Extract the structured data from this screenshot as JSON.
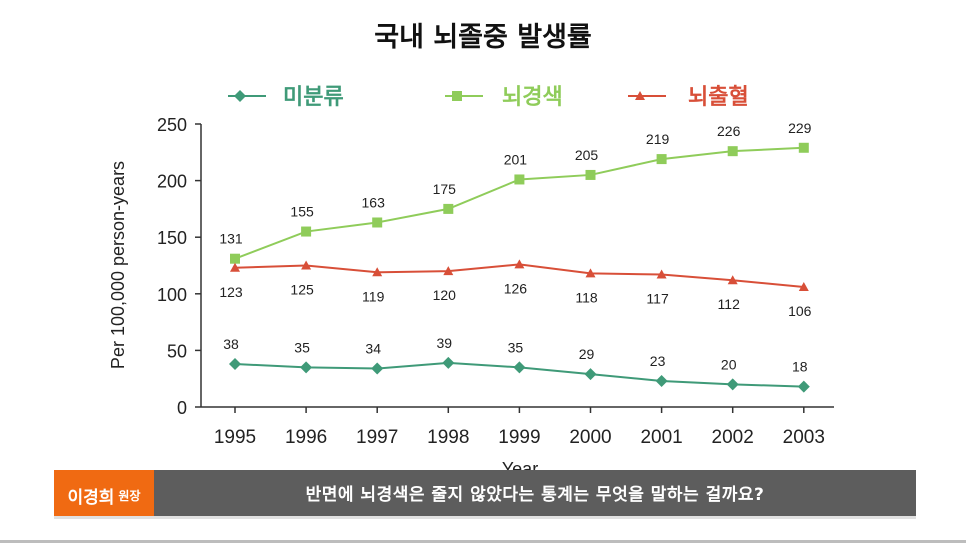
{
  "colors": {
    "unclassified": "#3f9a78",
    "infarction": "#8fcc5a",
    "hemorrhage": "#d84f38",
    "axis": "#333333",
    "presenter_bg": "#f06a12",
    "caption_bg": "#5d5d5d"
  },
  "chart_data": {
    "type": "line",
    "title": "국내 뇌졸중 발생률",
    "xlabel": "Year",
    "ylabel": "Per 100,000 person-years",
    "ylim": [
      0,
      250
    ],
    "yticks": [
      "0",
      "50",
      "100",
      "150",
      "200",
      "250"
    ],
    "grid": false,
    "legend_placement": "top",
    "x": [
      "1995",
      "1996",
      "1997",
      "1998",
      "1999",
      "2000",
      "2001",
      "2002",
      "2003"
    ],
    "series": [
      {
        "name": "미분류",
        "marker": "diamond",
        "color": "#3f9a78",
        "values": [
          38,
          35,
          34,
          39,
          35,
          29,
          23,
          20,
          18
        ],
        "labels": [
          "38",
          "35",
          "34",
          "39",
          "35",
          "29",
          "23",
          "20",
          "18"
        ],
        "label_position": "above"
      },
      {
        "name": "뇌경색",
        "marker": "square",
        "color": "#8fcc5a",
        "values": [
          131,
          155,
          163,
          175,
          201,
          205,
          219,
          226,
          229
        ],
        "labels": [
          "131",
          "155",
          "163",
          "175",
          "201",
          "205",
          "219",
          "226",
          "229"
        ],
        "label_position": "above"
      },
      {
        "name": "뇌출혈",
        "marker": "triangle",
        "color": "#d84f38",
        "values": [
          123,
          125,
          119,
          120,
          126,
          118,
          117,
          112,
          106
        ],
        "labels": [
          "123",
          "125",
          "119",
          "120",
          "126",
          "118",
          "117",
          "112",
          "106"
        ],
        "label_position": "below"
      }
    ]
  },
  "lower_third": {
    "presenter_name": "이경희",
    "presenter_title": "원장",
    "caption": "반면에 뇌경색은 줄지 않았다는 통계는 무엇을 말하는 걸까요?"
  }
}
